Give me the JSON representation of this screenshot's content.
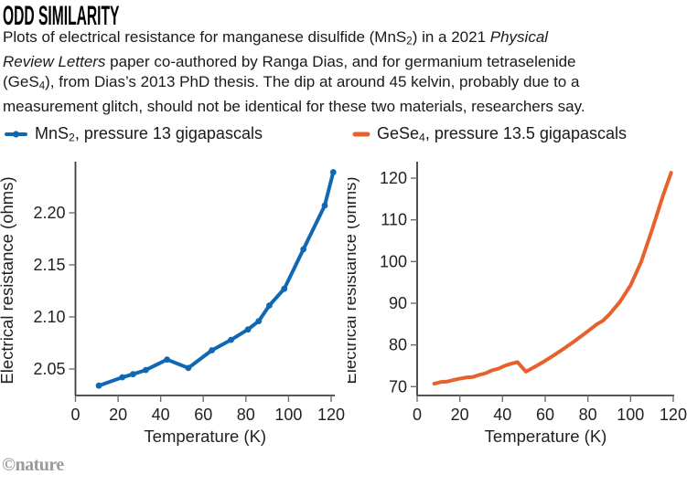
{
  "header": {
    "title": "ODD SIMILARITY"
  },
  "caption": {
    "lines": [
      [
        {
          "t": "Plots of electrical resistance for manganese disulfide (MnS"
        },
        {
          "t": "2",
          "s": "sub"
        },
        {
          "t": ") in a 2021 "
        },
        {
          "t": "Physical",
          "s": "i"
        }
      ],
      [
        {
          "t": "Review Letters",
          "s": "i"
        },
        {
          "t": " paper co-authored by Ranga Dias, and for germanium tetraselenide"
        }
      ],
      [
        {
          "t": "(GeS"
        },
        {
          "t": "4",
          "s": "sub"
        },
        {
          "t": "), from Dias’s 2013 PhD thesis. The dip at around 45 kelvin, probably due to a"
        }
      ],
      [
        {
          "t": "measurement glitch, should not be identical for these two materials, researchers say."
        }
      ]
    ]
  },
  "legends": [
    {
      "id": "mns2",
      "color": "#1068b2",
      "marker": "line-with-dot",
      "label": [
        {
          "t": "MnS"
        },
        {
          "t": "2",
          "s": "sub"
        },
        {
          "t": ", pressure 13 gigapascals"
        }
      ]
    },
    {
      "id": "gese4",
      "color": "#e8612c",
      "marker": "dash",
      "label": [
        {
          "t": "GeSe"
        },
        {
          "t": "4",
          "s": "sub"
        },
        {
          "t": ", pressure 13.5 gigapascals"
        }
      ]
    }
  ],
  "footer": {
    "credit": "©nature"
  },
  "chart_data": [
    {
      "type": "line",
      "title": "MnS2, pressure 13 gigapascals",
      "xlabel": "Temperature (K)",
      "ylabel": "Electrical resistance (ohms)",
      "xlim": [
        0,
        122
      ],
      "ylim": [
        2.03,
        2.245
      ],
      "xticks": [
        0,
        20,
        40,
        60,
        80,
        100,
        120
      ],
      "yticks": [
        2.05,
        2.1,
        2.15,
        2.2
      ],
      "ytick_labels": [
        "2.05",
        "2.10",
        "2.15",
        "2.20"
      ],
      "grid": false,
      "annotation": "dip at ~45 K",
      "series": [
        {
          "name": "MnS2",
          "color": "#1068b2",
          "markers": true,
          "x": [
            11,
            22,
            27,
            33,
            43,
            53,
            64,
            73,
            81,
            86,
            91,
            98,
            107,
            117,
            121
          ],
          "y": [
            2.034,
            2.042,
            2.045,
            2.049,
            2.059,
            2.051,
            2.068,
            2.078,
            2.088,
            2.096,
            2.111,
            2.127,
            2.165,
            2.207,
            2.239
          ]
        }
      ]
    },
    {
      "type": "line",
      "title": "GeSe4, pressure 13.5 gigapascals",
      "xlabel": "Temperature (K)",
      "ylabel": "Electrical resistance (ohms)",
      "xlim": [
        0,
        122
      ],
      "ylim": [
        68,
        123
      ],
      "xticks": [
        0,
        20,
        40,
        60,
        80,
        100,
        120
      ],
      "yticks": [
        70,
        80,
        90,
        100,
        110,
        120
      ],
      "ytick_labels": [
        "70",
        "80",
        "90",
        "100",
        "110",
        "120"
      ],
      "grid": false,
      "annotation": "dip at ~45 K",
      "series": [
        {
          "name": "GeSe4",
          "color": "#e8612c",
          "markers": false,
          "x": [
            8,
            11,
            14,
            17,
            20,
            23,
            26,
            29,
            32,
            35,
            38,
            41,
            44,
            47,
            51,
            55,
            59,
            64,
            69,
            74,
            79,
            84,
            87,
            90,
            95,
            100,
            105,
            110,
            115,
            119
          ],
          "y": [
            70.7,
            71.1,
            71.2,
            71.6,
            71.9,
            72.2,
            72.3,
            72.8,
            73.2,
            73.9,
            74.3,
            75.0,
            75.5,
            75.9,
            73.6,
            74.7,
            75.9,
            77.5,
            79.2,
            81.0,
            82.9,
            84.9,
            85.8,
            87.3,
            90.3,
            94.3,
            100.0,
            107.5,
            115.5,
            121.3
          ]
        }
      ]
    }
  ]
}
